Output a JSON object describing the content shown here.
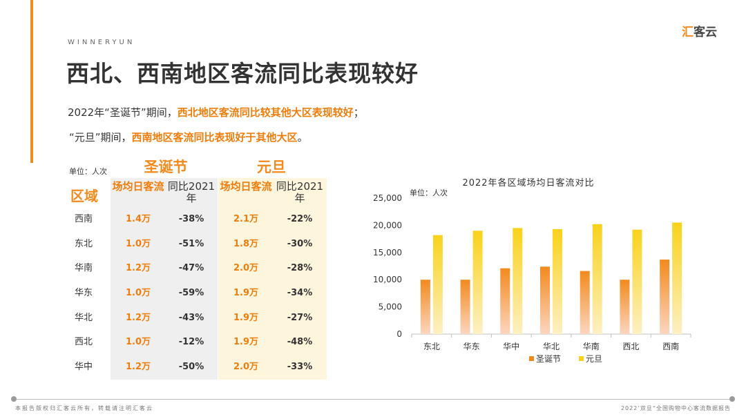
{
  "brand": "WINNERYUN",
  "logo": {
    "part1": "汇",
    "part2": "客云"
  },
  "title": "西北、西南地区客流同比表现较好",
  "summary": {
    "line1_prefix": "2022年“圣诞节”期间，",
    "line1_highlight": "西北地区客流同比较其他大区表现较好",
    "line1_suffix": "；",
    "line2_prefix": "“元旦”期间，",
    "line2_highlight": "西南地区客流同比表现好于其他大区",
    "line2_suffix": "。"
  },
  "table": {
    "unit": "单位：人次",
    "group_christmas": "圣诞节",
    "group_newyear": "元旦",
    "region_header": "区域",
    "headers": {
      "xmas_avg": "场均日客流",
      "xmas_yoy": "同比2021年",
      "ny_avg": "场均日客流",
      "ny_yoy": "同比2021年"
    },
    "rows": [
      {
        "region": "西南",
        "xmas_avg": "1.4万",
        "xmas_yoy": "-38%",
        "ny_avg": "2.1万",
        "ny_yoy": "-22%"
      },
      {
        "region": "东北",
        "xmas_avg": "1.0万",
        "xmas_yoy": "-51%",
        "ny_avg": "1.8万",
        "ny_yoy": "-30%"
      },
      {
        "region": "华南",
        "xmas_avg": "1.2万",
        "xmas_yoy": "-47%",
        "ny_avg": "2.0万",
        "ny_yoy": "-28%"
      },
      {
        "region": "华东",
        "xmas_avg": "1.0万",
        "xmas_yoy": "-59%",
        "ny_avg": "1.9万",
        "ny_yoy": "-34%"
      },
      {
        "region": "华北",
        "xmas_avg": "1.2万",
        "xmas_yoy": "-43%",
        "ny_avg": "1.9万",
        "ny_yoy": "-27%"
      },
      {
        "region": "西北",
        "xmas_avg": "1.0万",
        "xmas_yoy": "-12%",
        "ny_avg": "1.9万",
        "ny_yoy": "-48%"
      },
      {
        "region": "华中",
        "xmas_avg": "1.2万",
        "xmas_yoy": "-50%",
        "ny_avg": "2.0万",
        "ny_yoy": "-33%"
      }
    ]
  },
  "chart_data": {
    "type": "bar",
    "title": "2022年各区域场均日客流对比",
    "ylabel": "单位：人次",
    "xlabel": "",
    "categories": [
      "东北",
      "华东",
      "华中",
      "华北",
      "华南",
      "西北",
      "西南"
    ],
    "series": [
      {
        "name": "圣诞节",
        "values": [
          10000,
          10000,
          12100,
          12400,
          11600,
          10000,
          13700
        ],
        "color": "#f28a1e"
      },
      {
        "name": "元旦",
        "values": [
          18200,
          19000,
          19500,
          19300,
          20200,
          19200,
          20500
        ],
        "color": "#f9d21a"
      }
    ],
    "ylim": [
      0,
      25000
    ],
    "yticks": [
      0,
      5000,
      10000,
      15000,
      20000,
      25000
    ],
    "ytick_labels": [
      "0",
      "5,000",
      "10,000",
      "15,000",
      "20,000",
      "25,000"
    ],
    "legend_position": "bottom",
    "grid": false
  },
  "footer": {
    "left": "本报告版权归汇客云所有，转载请注明汇客云",
    "right": "2022’双旦“全国购物中心客流数据报告"
  },
  "colors": {
    "accent": "#f28a1e",
    "yellow": "#f9d21a"
  }
}
